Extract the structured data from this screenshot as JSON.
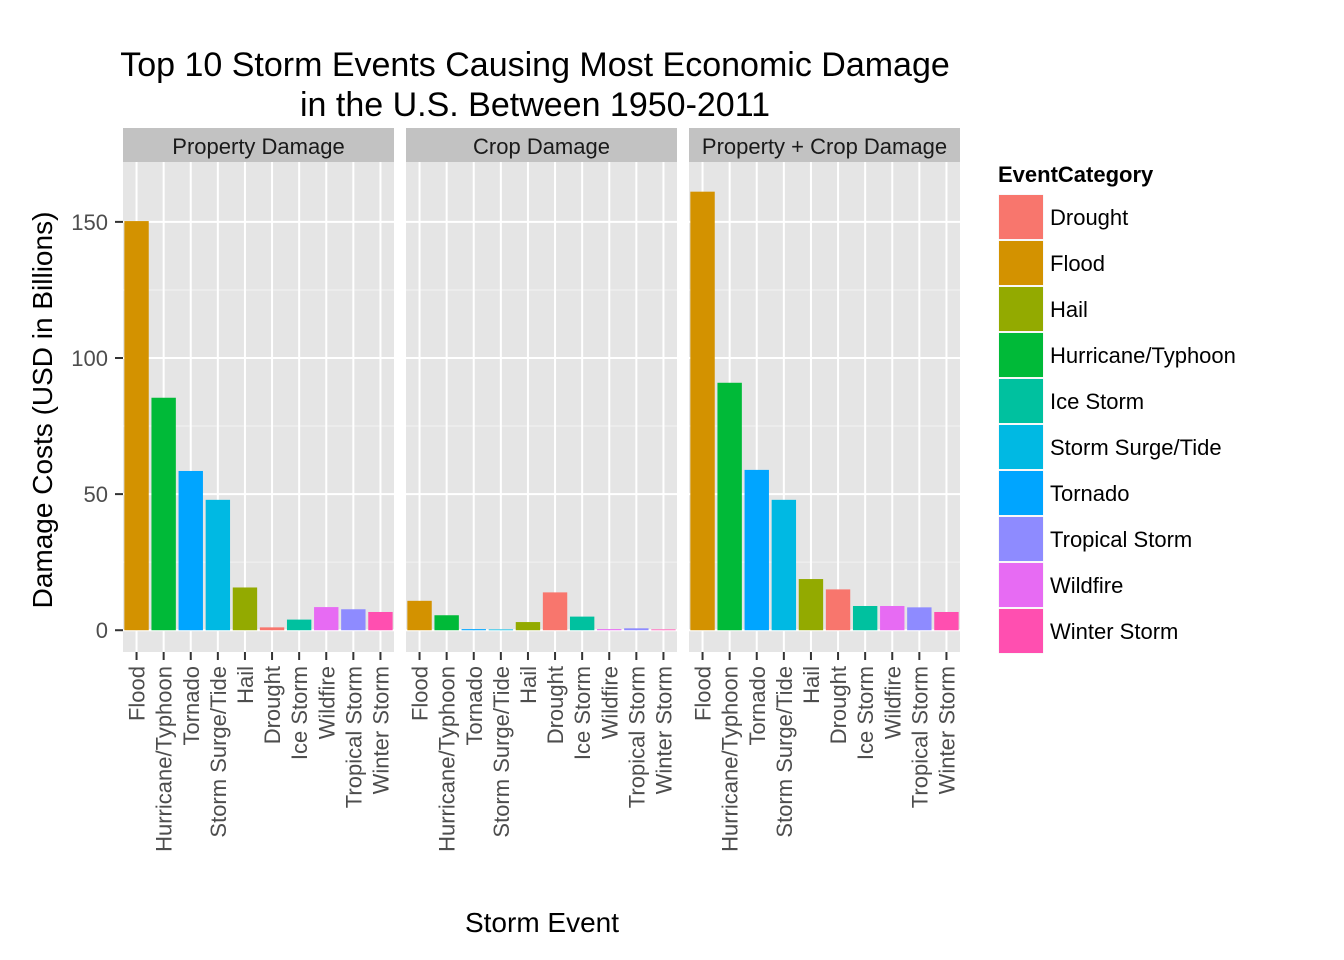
{
  "chart_data": {
    "type": "bar",
    "title_line1": "Top 10 Storm Events Causing Most Economic Damage",
    "title_line2": "in the U.S. Between 1950-2011",
    "xlabel": "Storm Event",
    "ylabel": "Damage Costs (USD in Billions)",
    "ylim": [
      -8,
      172
    ],
    "yticks": [
      0,
      50,
      100,
      150
    ],
    "categories": [
      "Flood",
      "Hurricane/Typhoon",
      "Tornado",
      "Storm Surge/Tide",
      "Hail",
      "Drought",
      "Ice Storm",
      "Wildfire",
      "Tropical Storm",
      "Winter Storm"
    ],
    "panels": [
      {
        "name": "Property Damage",
        "values": [
          150.3,
          85.4,
          58.5,
          47.9,
          15.7,
          1.05,
          3.9,
          8.5,
          7.7,
          6.7
        ]
      },
      {
        "name": "Crop Damage",
        "values": [
          10.8,
          5.5,
          0.4,
          0.0009,
          3.0,
          13.9,
          5.0,
          0.4,
          0.7,
          0.03
        ]
      },
      {
        "name": "Property + Crop Damage",
        "values": [
          161.1,
          90.9,
          58.9,
          47.9,
          18.8,
          15.0,
          8.9,
          8.9,
          8.4,
          6.7
        ]
      }
    ],
    "legend": {
      "title": "EventCategory",
      "position": "right",
      "items": [
        {
          "label": "Drought",
          "color": "#F8766D"
        },
        {
          "label": "Flood",
          "color": "#D39200"
        },
        {
          "label": "Hail",
          "color": "#93AA00"
        },
        {
          "label": "Hurricane/Typhoon",
          "color": "#00BA38"
        },
        {
          "label": "Ice Storm",
          "color": "#00C19F"
        },
        {
          "label": "Storm Surge/Tide",
          "color": "#00B9E3"
        },
        {
          "label": "Tornado",
          "color": "#00A5FF"
        },
        {
          "label": "Tropical Storm",
          "color": "#8E8BFF"
        },
        {
          "label": "Wildfire",
          "color": "#E76BF3"
        },
        {
          "label": "Winter Storm",
          "color": "#FF4FB0"
        }
      ]
    },
    "grid": true
  }
}
